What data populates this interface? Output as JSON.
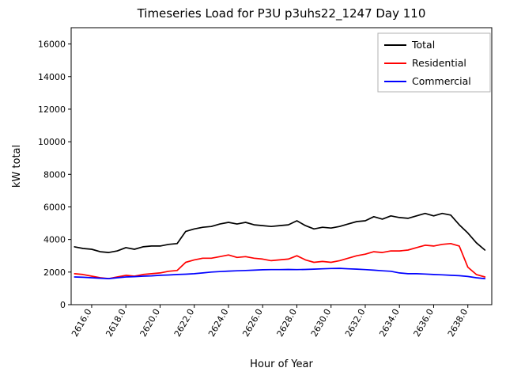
{
  "chart_data": {
    "type": "line",
    "title": "Timeseries Load for P3U p3uhs22_1247  Day 110",
    "xlabel": "Hour of Year",
    "ylabel": "kW total",
    "xlim": [
      2614.8,
      2639.4
    ],
    "ylim": [
      0,
      17000
    ],
    "grid": false,
    "legend_position": "upper right",
    "xticks": [
      2616,
      2618,
      2620,
      2622,
      2624,
      2626,
      2628,
      2630,
      2632,
      2634,
      2636,
      2638
    ],
    "xtick_labels": [
      "2616.0",
      "2618.0",
      "2620.0",
      "2622.0",
      "2624.0",
      "2626.0",
      "2628.0",
      "2630.0",
      "2632.0",
      "2634.0",
      "2636.0",
      "2638.0"
    ],
    "yticks": [
      0,
      2000,
      4000,
      6000,
      8000,
      10000,
      12000,
      14000,
      16000
    ],
    "ytick_labels": [
      "0",
      "2000",
      "4000",
      "6000",
      "8000",
      "10000",
      "12000",
      "14000",
      "16000"
    ],
    "x": [
      2615.0,
      2615.5,
      2616.0,
      2616.5,
      2617.0,
      2617.5,
      2618.0,
      2618.5,
      2619.0,
      2619.5,
      2620.0,
      2620.5,
      2621.0,
      2621.5,
      2622.0,
      2622.5,
      2623.0,
      2623.5,
      2624.0,
      2624.5,
      2625.0,
      2625.5,
      2626.0,
      2626.5,
      2627.0,
      2627.5,
      2628.0,
      2628.5,
      2629.0,
      2629.5,
      2630.0,
      2630.5,
      2631.0,
      2631.5,
      2632.0,
      2632.5,
      2633.0,
      2633.5,
      2634.0,
      2634.5,
      2635.0,
      2635.5,
      2636.0,
      2636.5,
      2637.0,
      2637.5,
      2638.0,
      2638.5,
      2639.0
    ],
    "series": [
      {
        "name": "Total",
        "color": "#000000",
        "values": [
          3550,
          3450,
          3400,
          3250,
          3200,
          3300,
          3500,
          3400,
          3550,
          3600,
          3600,
          3700,
          3750,
          4500,
          4650,
          4750,
          4800,
          4950,
          5050,
          4950,
          5050,
          4900,
          4850,
          4800,
          4850,
          4900,
          5150,
          4850,
          4650,
          4750,
          4700,
          4800,
          4950,
          5100,
          5150,
          5400,
          5250,
          5450,
          5350,
          5300,
          5450,
          5600,
          5450,
          5600,
          5500,
          4900,
          4400,
          3800,
          3350
        ]
      },
      {
        "name": "Residential",
        "color": "#ff0000",
        "values": [
          1900,
          1850,
          1750,
          1650,
          1600,
          1700,
          1800,
          1750,
          1850,
          1900,
          1950,
          2050,
          2100,
          2600,
          2750,
          2850,
          2850,
          2950,
          3050,
          2900,
          2950,
          2850,
          2800,
          2700,
          2750,
          2800,
          3000,
          2750,
          2600,
          2650,
          2600,
          2700,
          2850,
          3000,
          3100,
          3250,
          3200,
          3300,
          3300,
          3350,
          3500,
          3650,
          3600,
          3700,
          3750,
          3600,
          2300,
          1850,
          1700
        ]
      },
      {
        "name": "Commercial",
        "color": "#0000ff",
        "values": [
          1700,
          1680,
          1650,
          1620,
          1600,
          1650,
          1700,
          1720,
          1750,
          1770,
          1800,
          1820,
          1850,
          1870,
          1900,
          1950,
          2000,
          2030,
          2060,
          2080,
          2100,
          2120,
          2140,
          2150,
          2150,
          2160,
          2150,
          2160,
          2180,
          2200,
          2220,
          2230,
          2200,
          2180,
          2150,
          2120,
          2080,
          2050,
          1950,
          1900,
          1900,
          1880,
          1850,
          1830,
          1800,
          1780,
          1730,
          1650,
          1600
        ]
      }
    ]
  }
}
